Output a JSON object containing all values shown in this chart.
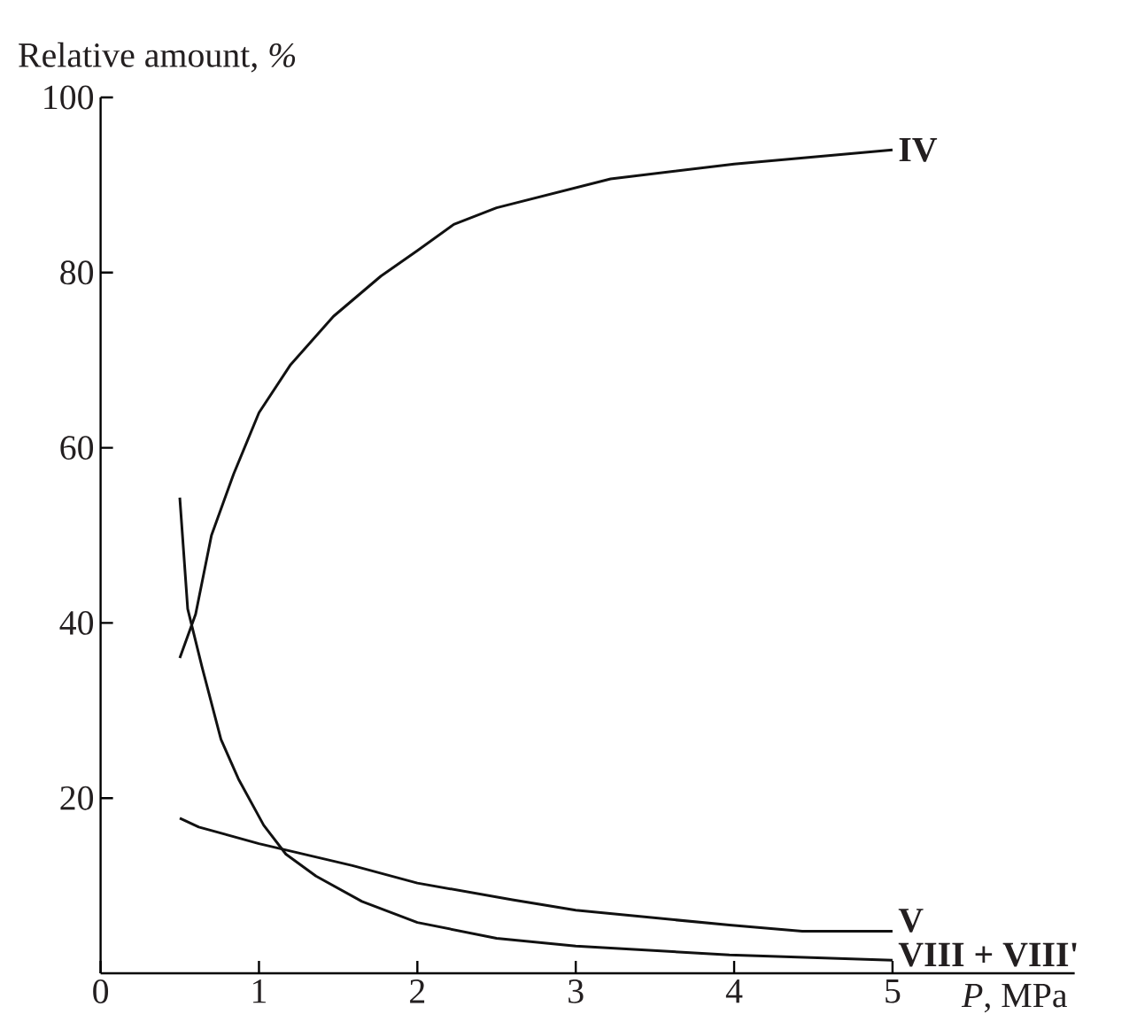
{
  "chart_data": {
    "type": "line",
    "xlabel": "*P*, MPa",
    "ylabel": "Relative amount, *%*",
    "xlim": [
      0,
      6.15
    ],
    "ylim": [
      0,
      100
    ],
    "xticks": [
      0,
      1,
      2,
      3,
      4,
      5
    ],
    "yticks": [
      20,
      40,
      60,
      80,
      100
    ],
    "legend": false,
    "grid": false,
    "marker": "none",
    "line_style": "solid",
    "series": [
      {
        "name": "**IV**",
        "color": "#111111",
        "x": [
          0.5,
          0.6,
          0.7,
          0.84,
          1.0,
          1.2,
          1.47,
          1.77,
          2.0,
          2.23,
          2.5,
          3.22,
          4.0,
          5.0
        ],
        "values": [
          36,
          41,
          50,
          57,
          64,
          69.5,
          75,
          79.6,
          82.5,
          85.5,
          87.4,
          90.7,
          92.4,
          94
        ]
      },
      {
        "name": "**V**",
        "color": "#111111",
        "x": [
          0.5,
          0.62,
          1.0,
          1.59,
          2.0,
          2.6,
          3.0,
          3.97,
          4.43,
          5.0
        ],
        "values": [
          17.7,
          16.7,
          14.8,
          12.3,
          10.3,
          8.4,
          7.2,
          5.5,
          4.8,
          4.8
        ]
      },
      {
        "name": "**VIII + VIII'**",
        "color": "#111111",
        "x": [
          0.5,
          0.55,
          0.64,
          0.76,
          0.87,
          1.03,
          1.17,
          1.36,
          1.65,
          2.0,
          2.5,
          3.0,
          3.97,
          5.0
        ],
        "values": [
          54.3,
          41.6,
          35,
          26.7,
          22.2,
          16.9,
          13.6,
          11.1,
          8.2,
          5.8,
          4.0,
          3.1,
          2.1,
          1.5
        ]
      }
    ]
  }
}
